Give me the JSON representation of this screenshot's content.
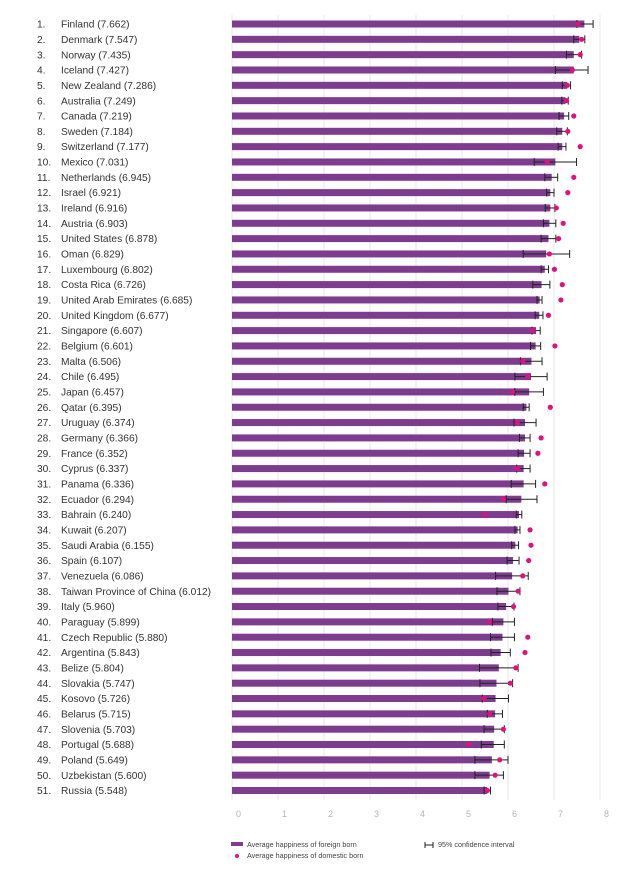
{
  "chart_data": {
    "type": "bar",
    "title": "",
    "xlabel": "",
    "ylabel": "",
    "xlim": [
      0,
      8
    ],
    "x_ticks": [
      "0",
      "1",
      "2",
      "3",
      "4",
      "5",
      "6",
      "7",
      "8"
    ],
    "grid": true,
    "legend_position": "bottom",
    "colors": {
      "bar": "#7d3c8e",
      "dot": "#e0117f",
      "ci": "#222222",
      "grid": "#dddddd"
    },
    "legend": {
      "foreign": "Average happiness of foreign born",
      "domestic": "Average happiness of domestic born",
      "ci": "95% confidence interval"
    },
    "rows": [
      {
        "rank": "1.",
        "label": "Finland (7.662)",
        "foreign": 7.66,
        "domestic": 7.52,
        "ci": [
          7.5,
          7.85
        ]
      },
      {
        "rank": "2.",
        "label": "Denmark (7.547)",
        "foreign": 7.55,
        "domestic": 7.6,
        "ci": [
          7.43,
          7.67
        ]
      },
      {
        "rank": "3.",
        "label": "Norway (7.435)",
        "foreign": 7.43,
        "domestic": 7.57,
        "ci": [
          7.27,
          7.6
        ]
      },
      {
        "rank": "4.",
        "label": "Iceland (7.427)",
        "foreign": 7.43,
        "domestic": 7.4,
        "ci": [
          7.03,
          7.74
        ]
      },
      {
        "rank": "5.",
        "label": "New Zealand (7.286)",
        "foreign": 7.29,
        "domestic": 7.29,
        "ci": [
          7.18,
          7.36
        ]
      },
      {
        "rank": "6.",
        "label": "Australia (7.249)",
        "foreign": 7.25,
        "domestic": 7.27,
        "ci": [
          7.17,
          7.31
        ]
      },
      {
        "rank": "7.",
        "label": "Canada (7.219)",
        "foreign": 7.22,
        "domestic": 7.43,
        "ci": [
          7.11,
          7.32
        ]
      },
      {
        "rank": "8.",
        "label": "Sweden (7.184)",
        "foreign": 7.18,
        "domestic": 7.3,
        "ci": [
          7.06,
          7.29
        ]
      },
      {
        "rank": "9.",
        "label": "Switzerland (7.177)",
        "foreign": 7.18,
        "domestic": 7.57,
        "ci": [
          7.09,
          7.26
        ]
      },
      {
        "rank": "10.",
        "label": "Mexico (7.031)",
        "foreign": 7.03,
        "domestic": 6.85,
        "ci": [
          6.57,
          7.49
        ]
      },
      {
        "rank": "11.",
        "label": "Netherlands (6.945)",
        "foreign": 6.95,
        "domestic": 7.43,
        "ci": [
          6.8,
          7.08
        ]
      },
      {
        "rank": "12.",
        "label": "Israel (6.921)",
        "foreign": 6.92,
        "domestic": 7.3,
        "ci": [
          6.84,
          7.0
        ]
      },
      {
        "rank": "13.",
        "label": "Ireland (6.916)",
        "foreign": 6.92,
        "domestic": 7.05,
        "ci": [
          6.81,
          7.02
        ]
      },
      {
        "rank": "14.",
        "label": "Austria (6.903)",
        "foreign": 6.9,
        "domestic": 7.2,
        "ci": [
          6.77,
          7.04
        ]
      },
      {
        "rank": "15.",
        "label": "United States (6.878)",
        "foreign": 6.88,
        "domestic": 7.1,
        "ci": [
          6.72,
          7.04
        ]
      },
      {
        "rank": "16.",
        "label": "Oman (6.829)",
        "foreign": 6.83,
        "domestic": 6.9,
        "ci": [
          6.33,
          7.34
        ]
      },
      {
        "rank": "17.",
        "label": "Luxembourg (6.802)",
        "foreign": 6.8,
        "domestic": 7.01,
        "ci": [
          6.72,
          6.88
        ]
      },
      {
        "rank": "18.",
        "label": "Costa Rica (6.726)",
        "foreign": 6.73,
        "domestic": 7.18,
        "ci": [
          6.54,
          6.91
        ]
      },
      {
        "rank": "19.",
        "label": "United Arab Emirates (6.685)",
        "foreign": 6.69,
        "domestic": 7.15,
        "ci": [
          6.63,
          6.74
        ]
      },
      {
        "rank": "20.",
        "label": "United Kingdom (6.677)",
        "foreign": 6.68,
        "domestic": 6.88,
        "ci": [
          6.59,
          6.76
        ]
      },
      {
        "rank": "21.",
        "label": "Singapore (6.607)",
        "foreign": 6.61,
        "domestic": 6.54,
        "ci": [
          6.52,
          6.7
        ]
      },
      {
        "rank": "22.",
        "label": "Belgium (6.601)",
        "foreign": 6.6,
        "domestic": 7.02,
        "ci": [
          6.49,
          6.71
        ]
      },
      {
        "rank": "23.",
        "label": "Malta (6.506)",
        "foreign": 6.51,
        "domestic": 6.32,
        "ci": [
          6.27,
          6.74
        ]
      },
      {
        "rank": "24.",
        "label": "Chile (6.495)",
        "foreign": 6.5,
        "domestic": 6.43,
        "ci": [
          6.15,
          6.85
        ]
      },
      {
        "rank": "25.",
        "label": "Japan (6.457)",
        "foreign": 6.46,
        "domestic": 6.1,
        "ci": [
          6.15,
          6.77
        ]
      },
      {
        "rank": "26.",
        "label": "Qatar (6.395)",
        "foreign": 6.4,
        "domestic": 6.92,
        "ci": [
          6.33,
          6.46
        ]
      },
      {
        "rank": "27.",
        "label": "Uruguay (6.374)",
        "foreign": 6.37,
        "domestic": 6.2,
        "ci": [
          6.13,
          6.61
        ]
      },
      {
        "rank": "28.",
        "label": "Germany (6.366)",
        "foreign": 6.37,
        "domestic": 6.72,
        "ci": [
          6.25,
          6.48
        ]
      },
      {
        "rank": "29.",
        "label": "France (6.352)",
        "foreign": 6.35,
        "domestic": 6.65,
        "ci": [
          6.22,
          6.48
        ]
      },
      {
        "rank": "30.",
        "label": "Cyprus (6.337)",
        "foreign": 6.34,
        "domestic": 6.2,
        "ci": [
          6.19,
          6.48
        ]
      },
      {
        "rank": "31.",
        "label": "Panama (6.336)",
        "foreign": 6.34,
        "domestic": 6.8,
        "ci": [
          6.07,
          6.6
        ]
      },
      {
        "rank": "32.",
        "label": "Ecuador (6.294)",
        "foreign": 6.29,
        "domestic": 5.9,
        "ci": [
          5.96,
          6.63
        ]
      },
      {
        "rank": "33.",
        "label": "Bahrain (6.240)",
        "foreign": 6.24,
        "domestic": 5.5,
        "ci": [
          6.18,
          6.3
        ]
      },
      {
        "rank": "34.",
        "label": "Kuwait (6.207)",
        "foreign": 6.21,
        "domestic": 6.48,
        "ci": [
          6.15,
          6.26
        ]
      },
      {
        "rank": "35.",
        "label": "Saudi Arabia (6.155)",
        "foreign": 6.16,
        "domestic": 6.5,
        "ci": [
          6.08,
          6.23
        ]
      },
      {
        "rank": "36.",
        "label": "Spain (6.107)",
        "foreign": 6.11,
        "domestic": 6.45,
        "ci": [
          5.98,
          6.24
        ]
      },
      {
        "rank": "37.",
        "label": "Venezuela (6.086)",
        "foreign": 6.09,
        "domestic": 6.32,
        "ci": [
          5.73,
          6.44
        ]
      },
      {
        "rank": "38.",
        "label": "Taiwan Province of China (6.012)",
        "foreign": 6.01,
        "domestic": 6.22,
        "ci": [
          5.76,
          6.26
        ]
      },
      {
        "rank": "39.",
        "label": "Italy (5.960)",
        "foreign": 5.96,
        "domestic": 6.12,
        "ci": [
          5.78,
          6.13
        ]
      },
      {
        "rank": "40.",
        "label": "Paraguay (5.899)",
        "foreign": 5.9,
        "domestic": 5.6,
        "ci": [
          5.66,
          6.14
        ]
      },
      {
        "rank": "41.",
        "label": "Czech Republic (5.880)",
        "foreign": 5.88,
        "domestic": 6.43,
        "ci": [
          5.62,
          6.14
        ]
      },
      {
        "rank": "42.",
        "label": "Argentina (5.843)",
        "foreign": 5.84,
        "domestic": 6.37,
        "ci": [
          5.63,
          6.05
        ]
      },
      {
        "rank": "43.",
        "label": "Belize (5.804)",
        "foreign": 5.8,
        "domestic": 6.17,
        "ci": [
          5.38,
          6.22
        ]
      },
      {
        "rank": "44.",
        "label": "Slovakia (5.747)",
        "foreign": 5.75,
        "domestic": 6.05,
        "ci": [
          5.39,
          6.1
        ]
      },
      {
        "rank": "45.",
        "label": "Kosovo (5.726)",
        "foreign": 5.73,
        "domestic": 5.48,
        "ci": [
          5.44,
          6.01
        ]
      },
      {
        "rank": "46.",
        "label": "Belarus (5.715)",
        "foreign": 5.72,
        "domestic": 5.6,
        "ci": [
          5.55,
          5.88
        ]
      },
      {
        "rank": "47.",
        "label": "Slovenia (5.703)",
        "foreign": 5.7,
        "domestic": 5.9,
        "ci": [
          5.48,
          5.92
        ]
      },
      {
        "rank": "48.",
        "label": "Portugal (5.688)",
        "foreign": 5.69,
        "domestic": 5.15,
        "ci": [
          5.42,
          5.92
        ]
      },
      {
        "rank": "49.",
        "label": "Poland (5.649)",
        "foreign": 5.65,
        "domestic": 5.82,
        "ci": [
          5.28,
          6.0
        ]
      },
      {
        "rank": "50.",
        "label": "Uzbekistan (5.600)",
        "foreign": 5.6,
        "domestic": 5.72,
        "ci": [
          5.28,
          5.9
        ]
      },
      {
        "rank": "51.",
        "label": "Russia (5.548)",
        "foreign": 5.55,
        "domestic": 5.55,
        "ci": [
          5.48,
          5.62
        ]
      }
    ]
  }
}
